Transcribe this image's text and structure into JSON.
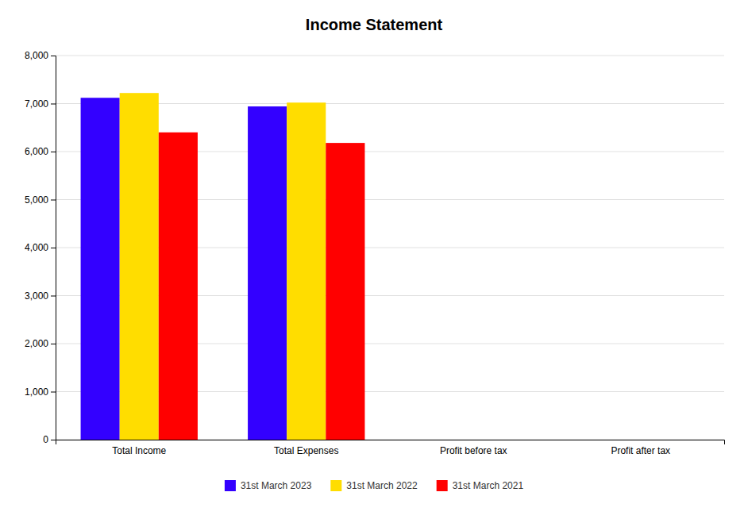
{
  "chart_data": {
    "type": "bar",
    "title": "Income Statement",
    "categories": [
      "Total Income",
      "Total Expenses",
      "Profit before tax",
      "Profit after tax"
    ],
    "series": [
      {
        "name": "31st March 2023",
        "color": "#3300ff",
        "values": [
          7120,
          6940,
          0,
          0
        ]
      },
      {
        "name": "31st March 2022",
        "color": "#ffdd00",
        "values": [
          7220,
          7020,
          0,
          0
        ]
      },
      {
        "name": "31st March 2021",
        "color": "#ff0000",
        "values": [
          6400,
          6180,
          0,
          0
        ]
      }
    ],
    "ylim": [
      0,
      8000
    ],
    "yticks": [
      0,
      {
        "value": 1000,
        "label": "1,000"
      },
      {
        "value": 2000,
        "label": "2,000"
      },
      {
        "value": 3000,
        "label": "3,000"
      },
      {
        "value": 4000,
        "label": "4,000"
      },
      {
        "value": 5000,
        "label": "5,000"
      },
      {
        "value": 6000,
        "label": "6,000"
      },
      {
        "value": 7000,
        "label": "7,000"
      },
      {
        "value": 8000,
        "label": "8,000"
      }
    ],
    "grid": true,
    "legend": "bottom"
  }
}
